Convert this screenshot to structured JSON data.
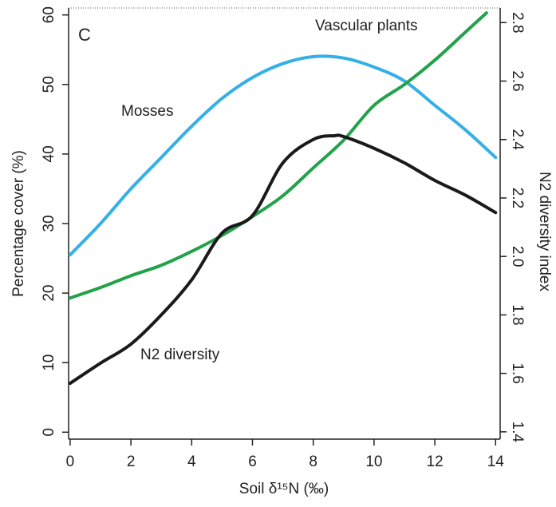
{
  "chart_data": {
    "type": "line",
    "panel": "C",
    "xlabel": "Soil δ¹⁵N (‰)",
    "ylabel": "Percentage cover (%)",
    "y2label": "N2 diversity index",
    "xlim": [
      -0.05,
      14.15
    ],
    "xticks": [
      0,
      2,
      4,
      6,
      8,
      10,
      12,
      14
    ],
    "ylim": [
      -1,
      61
    ],
    "yticks": [
      0,
      10,
      20,
      30,
      40,
      50,
      60
    ],
    "y2lim": [
      1.375,
      2.85
    ],
    "y2ticks": [
      1.4,
      1.6,
      1.8,
      {
        "value": 2,
        "label": "2.0"
      },
      2.2,
      2.4,
      2.6,
      2.8
    ],
    "series": [
      {
        "name": "Mosses",
        "color": "#35b0e6",
        "x": [
          0,
          1,
          2,
          3,
          4,
          5,
          6,
          7,
          8,
          9,
          10,
          11,
          12,
          13,
          14
        ],
        "values": [
          25.5,
          30,
          35,
          39.5,
          44,
          48,
          51,
          53,
          54,
          53.8,
          52.5,
          50.5,
          47,
          43.5,
          39.5
        ]
      },
      {
        "name": "Vascular plants",
        "color": "#22a24a",
        "x": [
          0,
          1,
          2,
          3,
          4,
          5,
          6,
          7,
          8,
          9,
          10,
          11,
          12,
          13,
          13.7
        ],
        "values": [
          19.3,
          20.8,
          22.5,
          24,
          26,
          28.3,
          31,
          34,
          38,
          42,
          47,
          50,
          53.5,
          57.5,
          60.3
        ]
      },
      {
        "name": "N2 diversity",
        "color": "#1a1a1a",
        "axis": "y2",
        "x": [
          0,
          1,
          2,
          3,
          4,
          5,
          6,
          7,
          8,
          8.7,
          9,
          10,
          11,
          12,
          13,
          14
        ],
        "values": [
          1.566,
          1.635,
          1.7,
          1.8,
          1.92,
          2.08,
          2.14,
          2.32,
          2.4,
          2.413,
          2.41,
          2.37,
          2.32,
          2.26,
          2.21,
          2.15
        ]
      }
    ]
  }
}
